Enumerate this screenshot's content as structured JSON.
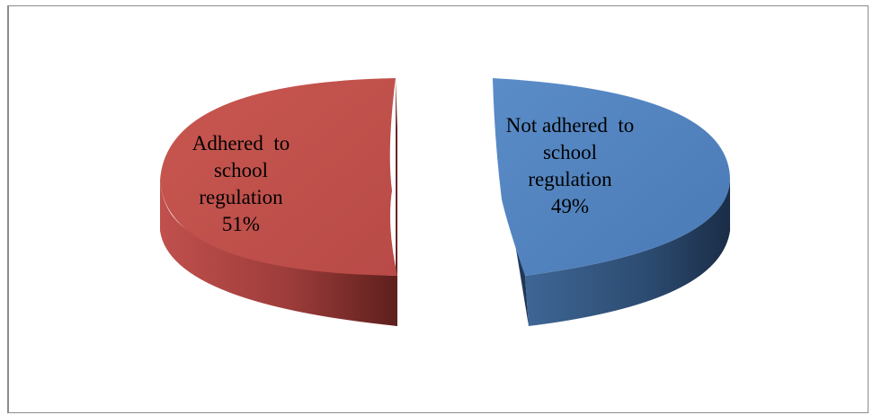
{
  "chart_data": {
    "type": "pie",
    "style": "3d-exploded",
    "title": "",
    "legend": "none",
    "slices": [
      {
        "name": "Adhered to school regulation",
        "value": 51,
        "label_lines": [
          "Adhered  to",
          "school",
          "regulation",
          "51%"
        ],
        "color": "#c0504d",
        "side_color_light": "#b84a47",
        "side_color_dark": "#6e2523"
      },
      {
        "name": "Not adhered to school regulation",
        "value": 49,
        "label_lines": [
          "Not adhered  to",
          "school",
          "regulation",
          "49%"
        ],
        "color": "#4f81bd",
        "side_color_light": "#3b5f8c",
        "side_color_dark": "#1f3554"
      }
    ]
  }
}
